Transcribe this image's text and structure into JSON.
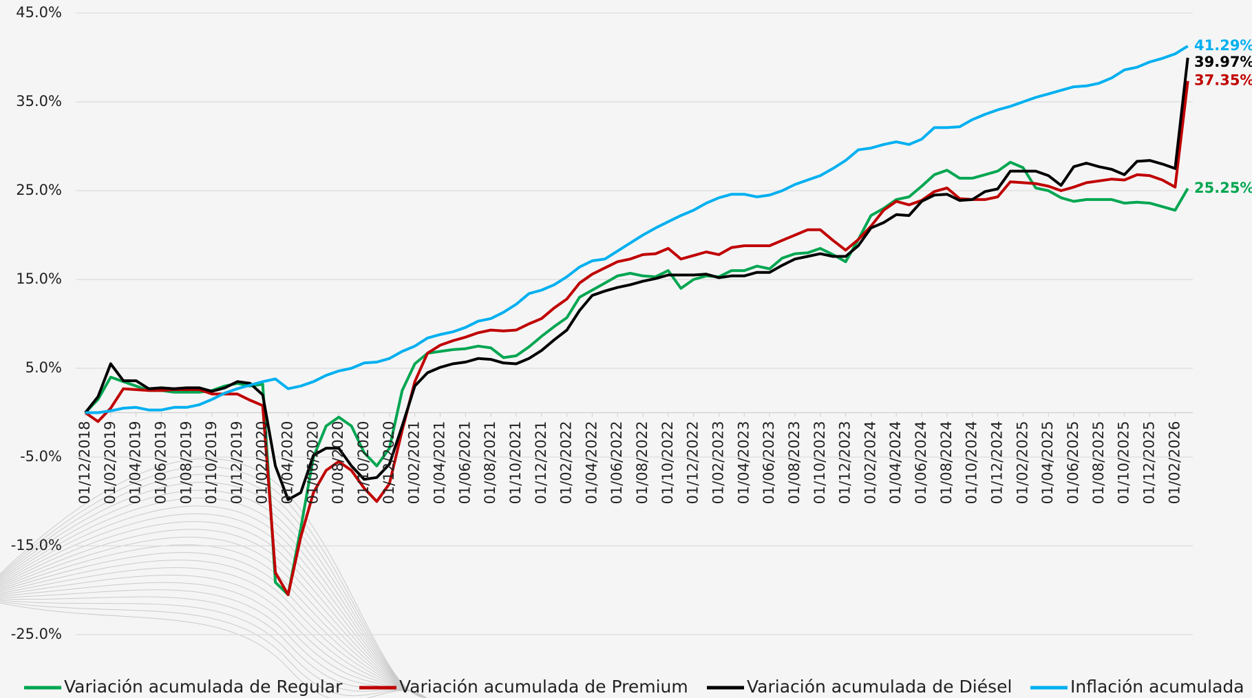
{
  "chart_data": {
    "type": "line",
    "categories": [
      "01/12/2018",
      null,
      "01/02/2019",
      null,
      "01/04/2019",
      null,
      "01/06/2019",
      null,
      "01/08/2019",
      null,
      "01/10/2019",
      null,
      "01/12/2019",
      null,
      "01/02/2020",
      null,
      "01/04/2020",
      null,
      "01/06/2020",
      null,
      "01/08/2020",
      null,
      "01/10/2020",
      null,
      "01/12/2020",
      null,
      "01/02/2021",
      null,
      "01/04/2021",
      null,
      "01/06/2021",
      null,
      "01/08/2021",
      null,
      "01/10/2021",
      null,
      "01/12/2021",
      null,
      "01/02/2022",
      null,
      "01/04/2022",
      null,
      "01/06/2022",
      null,
      "01/08/2022",
      null,
      "01/10/2022",
      null,
      "01/12/2022",
      null,
      "01/02/2023",
      null,
      "01/04/2023",
      null,
      "01/06/2023",
      null,
      "01/08/2023",
      null,
      "01/10/2023",
      null,
      "01/12/2023",
      null,
      "01/02/2024",
      null,
      "01/04/2024",
      null,
      "01/06/2024",
      null,
      "01/08/2024",
      null,
      "01/10/2024",
      null,
      "01/12/2024",
      null,
      "01/02/2025",
      null,
      "01/04/2025",
      null,
      "01/06/2025",
      null,
      "01/08/2025",
      null,
      "01/10/2025",
      null,
      "01/12/2025",
      null,
      "01/02/2026",
      null
    ],
    "series": [
      {
        "name": "Variación acumulada de Regular",
        "color": "#00a651",
        "values": [
          0,
          1.5,
          4.0,
          3.5,
          3.0,
          2.5,
          2.5,
          2.3,
          2.3,
          2.3,
          2.5,
          3.0,
          3.3,
          3.0,
          3.2,
          -19.1,
          -20.5,
          -13,
          -5,
          -1.5,
          -0.5,
          -1.5,
          -4.5,
          -6.0,
          -4.0,
          2.5,
          5.5,
          6.7,
          6.9,
          7.1,
          7.2,
          7.5,
          7.3,
          6.2,
          6.4,
          7.4,
          8.6,
          9.7,
          10.7,
          13.0,
          13.8,
          14.6,
          15.4,
          15.7,
          15.4,
          15.3,
          16.0,
          14.0,
          15.0,
          15.4,
          15.3,
          16.0,
          16.0,
          16.5,
          16.2,
          17.4,
          17.9,
          18.0,
          18.5,
          17.8,
          17.0,
          19.5,
          22.2,
          23.0,
          24.0,
          24.3,
          25.5,
          26.8,
          27.3,
          26.4,
          26.4,
          26.8,
          27.2,
          28.2,
          27.6,
          25.3,
          25.0,
          24.2,
          23.8,
          24.0,
          24.0,
          24.0,
          23.6,
          23.7,
          23.6,
          23.2,
          22.8,
          25.25
        ],
        "value_labels": {
          "87": "25.25%"
        }
      },
      {
        "name": "Variación acumulada de Premium",
        "color": "#c00000",
        "values": [
          0,
          -1.0,
          0.5,
          2.7,
          2.6,
          2.5,
          2.5,
          2.6,
          2.6,
          2.6,
          2.1,
          2.1,
          2.1,
          1.4,
          0.8,
          -18,
          -20.5,
          -14,
          -9,
          -6.5,
          -5.5,
          -6.5,
          -8.5,
          -10,
          -8,
          -2,
          3.5,
          6.7,
          7.6,
          8.1,
          8.5,
          9.0,
          9.3,
          9.2,
          9.3,
          10.0,
          10.6,
          11.8,
          12.8,
          14.6,
          15.6,
          16.3,
          17.0,
          17.3,
          17.8,
          17.9,
          18.5,
          17.3,
          17.7,
          18.1,
          17.8,
          18.6,
          18.8,
          18.8,
          18.8,
          19.4,
          20.0,
          20.6,
          20.6,
          19.4,
          18.3,
          19.5,
          21.0,
          22.8,
          23.8,
          23.4,
          23.9,
          24.9,
          25.3,
          24.1,
          24.0,
          24.0,
          24.3,
          26.0,
          25.9,
          25.8,
          25.5,
          25.0,
          25.4,
          25.9,
          26.1,
          26.3,
          26.2,
          26.8,
          26.7,
          26.2,
          25.4,
          37.35
        ],
        "value_labels": {
          "87": "37.35%"
        }
      },
      {
        "name": "Variación acumulada de Diésel",
        "color": "#000000",
        "values": [
          0,
          1.8,
          5.5,
          3.6,
          3.6,
          2.7,
          2.8,
          2.7,
          2.8,
          2.8,
          2.4,
          2.8,
          3.5,
          3.3,
          2.0,
          -6.0,
          -9.8,
          -9.0,
          -4.8,
          -4.0,
          -4.0,
          -6.0,
          -7.5,
          -7.3,
          -5.8,
          -1.5,
          3.0,
          4.5,
          5.1,
          5.5,
          5.7,
          6.1,
          6.0,
          5.6,
          5.5,
          6.1,
          7.0,
          8.2,
          9.3,
          11.5,
          13.2,
          13.7,
          14.1,
          14.4,
          14.8,
          15.1,
          15.5,
          15.5,
          15.5,
          15.6,
          15.2,
          15.4,
          15.4,
          15.8,
          15.8,
          16.6,
          17.3,
          17.6,
          17.9,
          17.6,
          17.6,
          18.8,
          20.8,
          21.4,
          22.3,
          22.2,
          23.8,
          24.5,
          24.6,
          23.9,
          24.0,
          24.9,
          25.2,
          27.2,
          27.2,
          27.2,
          26.7,
          25.6,
          27.7,
          28.1,
          27.7,
          27.4,
          26.8,
          28.3,
          28.4,
          28.0,
          27.5,
          39.97
        ],
        "value_labels": {
          "87": "39.97%"
        }
      },
      {
        "name": "Inflación acumulada",
        "color": "#00b0f0",
        "values": [
          0,
          0,
          0.2,
          0.5,
          0.6,
          0.3,
          0.3,
          0.6,
          0.6,
          0.9,
          1.5,
          2.2,
          2.7,
          3.1,
          3.5,
          3.8,
          2.7,
          3.0,
          3.5,
          4.2,
          4.7,
          5.0,
          5.6,
          5.7,
          6.1,
          6.9,
          7.5,
          8.4,
          8.8,
          9.1,
          9.6,
          10.3,
          10.6,
          11.3,
          12.2,
          13.4,
          13.8,
          14.4,
          15.3,
          16.4,
          17.1,
          17.3,
          18.2,
          19.1,
          20.0,
          20.8,
          21.5,
          22.2,
          22.8,
          23.6,
          24.2,
          24.6,
          24.6,
          24.3,
          24.5,
          25.0,
          25.7,
          26.2,
          26.7,
          27.5,
          28.4,
          29.6,
          29.8,
          30.2,
          30.5,
          30.2,
          30.8,
          32.1,
          32.1,
          32.2,
          33.0,
          33.6,
          34.1,
          34.5,
          35.0,
          35.5,
          35.9,
          36.3,
          36.7,
          36.8,
          37.1,
          37.7,
          38.6,
          38.9,
          39.5,
          39.9,
          40.4,
          41.29
        ],
        "value_labels": {
          "87": "41.29%"
        }
      }
    ],
    "ylim": [
      -25,
      45
    ],
    "yticks": [
      {
        "value": -25,
        "label": "-25.0%"
      },
      {
        "value": -15,
        "label": "-15.0%"
      },
      {
        "value": -5,
        "label": "-5.0%"
      },
      {
        "value": 5,
        "label": "5.0%"
      },
      {
        "value": 15,
        "label": "15.0%"
      },
      {
        "value": 25,
        "label": "25.0%"
      },
      {
        "value": 35,
        "label": "35.0%"
      },
      {
        "value": 45,
        "label": "45.0%"
      }
    ],
    "grid": true,
    "legend": "bottom"
  }
}
